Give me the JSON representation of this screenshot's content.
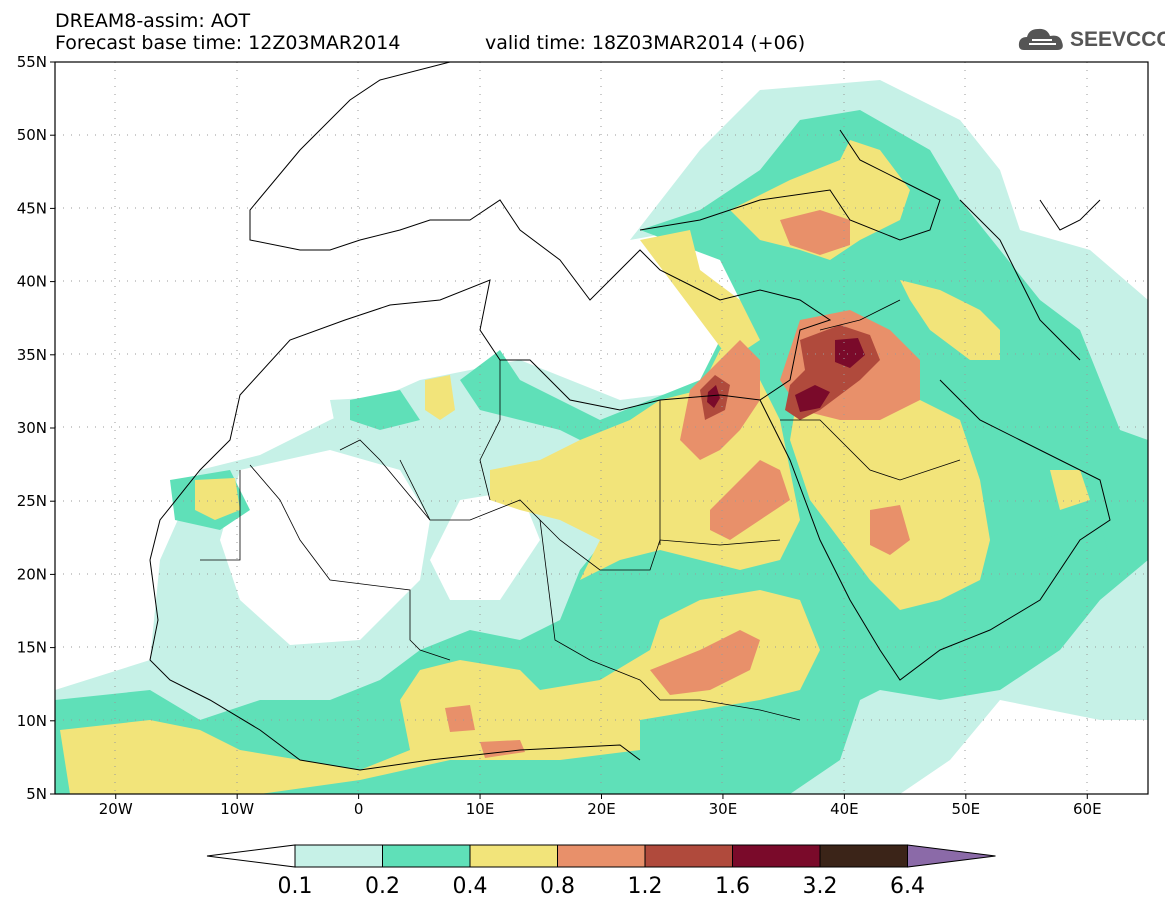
{
  "header": {
    "title": "DREAM8-assim: AOT",
    "base_time": "Forecast base time: 12Z03MAR2014",
    "valid_time": "valid time: 18Z03MAR2014 (+06)"
  },
  "logo": {
    "text": "SEEVCCC",
    "icon": "cloud-icon"
  },
  "map": {
    "lat_labels": [
      "55N",
      "50N",
      "45N",
      "40N",
      "35N",
      "30N",
      "25N",
      "20N",
      "15N",
      "10N",
      "5N"
    ],
    "lon_labels": [
      "20W",
      "10W",
      "0",
      "10E",
      "20E",
      "30E",
      "40E",
      "50E",
      "60E"
    ],
    "lat_range": [
      5,
      55
    ],
    "lon_range": [
      -25,
      65
    ],
    "grid": "dotted"
  },
  "colorbar": {
    "labels": [
      "0.1",
      "0.2",
      "0.4",
      "0.8",
      "1.2",
      "1.6",
      "3.2",
      "6.4"
    ],
    "colors": [
      "#ffffff",
      "#c6f1e7",
      "#5fe0b8",
      "#f2e47a",
      "#e8906a",
      "#b04a3c",
      "#7a0a2a",
      "#3b2418",
      "#8b6aa8"
    ]
  }
}
